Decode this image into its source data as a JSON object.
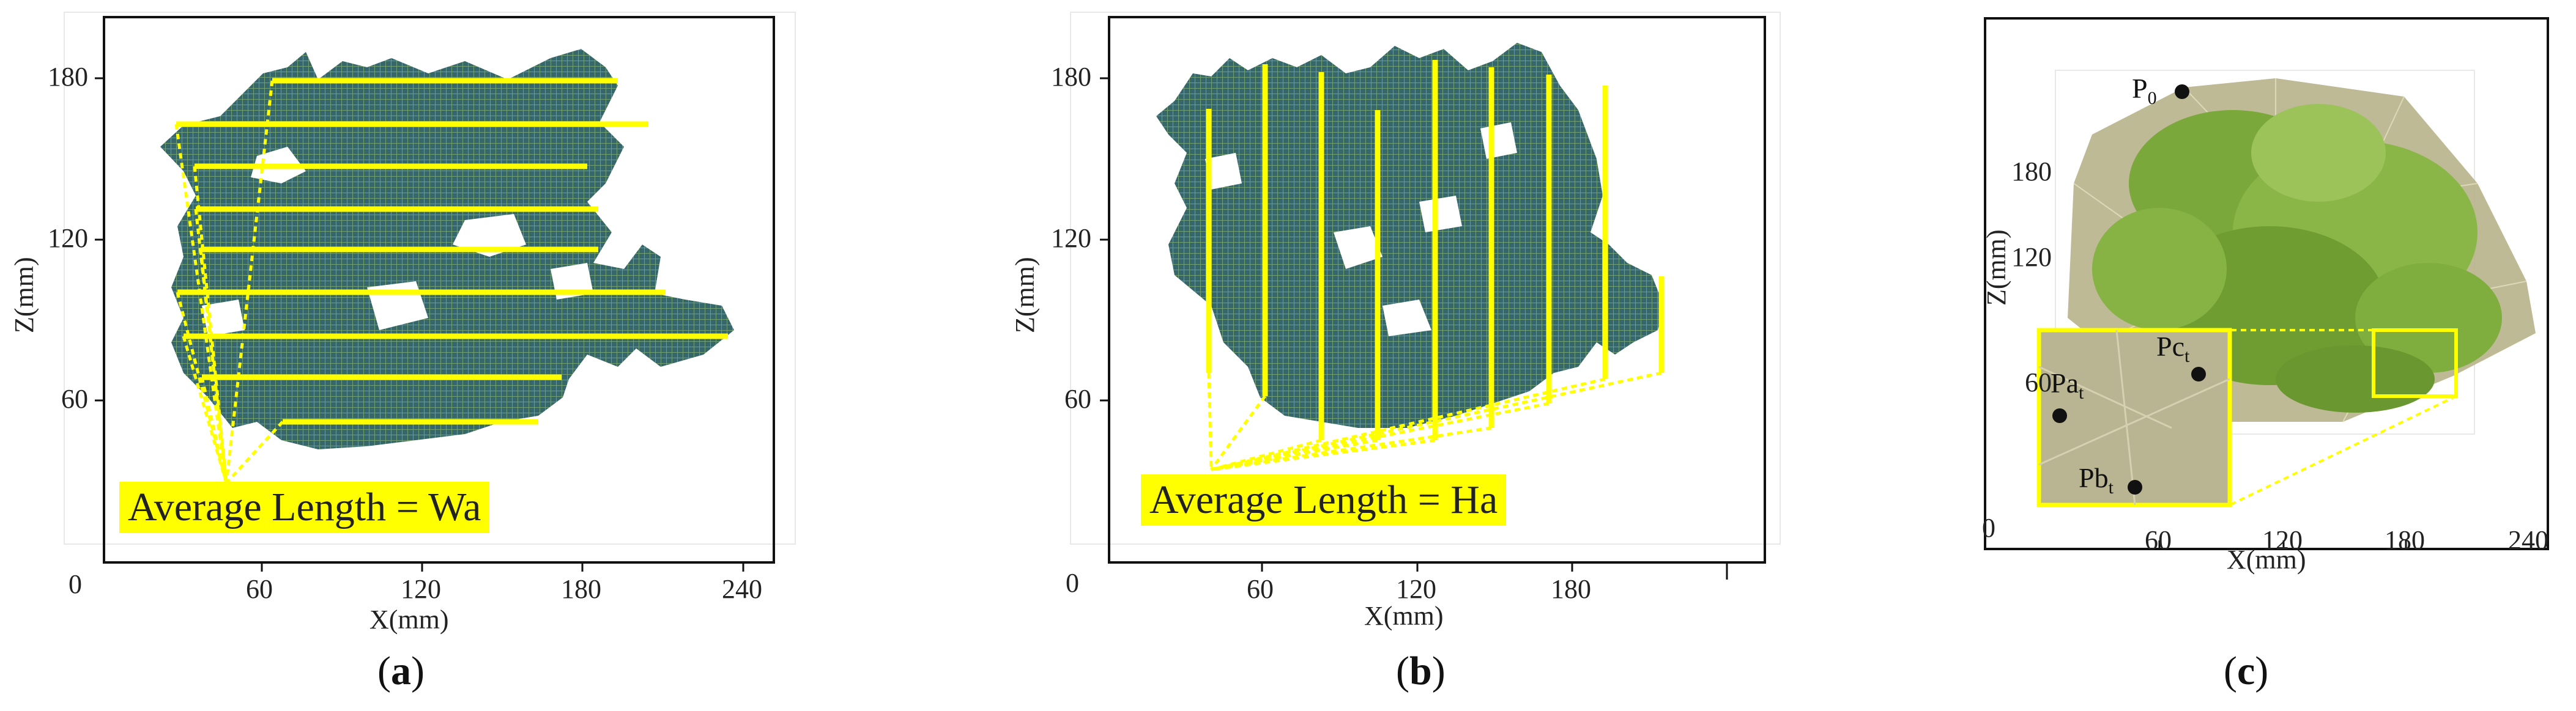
{
  "panels": [
    {
      "id": "a",
      "caption_letter": "a",
      "xlabel": "X(mm)",
      "ylabel": "Z(mm)",
      "x_ticks": [
        "0",
        "60",
        "120",
        "180",
        "240"
      ],
      "y_ticks": [
        "60",
        "120",
        "180"
      ],
      "annotation": "Average Length = Wa"
    },
    {
      "id": "b",
      "caption_letter": "b",
      "xlabel": "X(mm)",
      "ylabel": "Z(mm)",
      "x_ticks": [
        "0",
        "60",
        "120",
        "180"
      ],
      "y_ticks": [
        "60",
        "120",
        "180"
      ],
      "annotation": "Average Length = Ha"
    },
    {
      "id": "c",
      "caption_letter": "c",
      "xlabel": "X(mm)",
      "ylabel": "Z(mm)",
      "x_ticks": [
        "0",
        "60",
        "120",
        "180",
        "240"
      ],
      "y_ticks": [
        "60",
        "120",
        "180"
      ],
      "points": {
        "p0": {
          "base": "P",
          "sub": "0"
        },
        "pa": {
          "base": "Pa",
          "sub": "t"
        },
        "pb": {
          "base": "Pb",
          "sub": "t"
        },
        "pc": {
          "base": "Pc",
          "sub": "t"
        }
      }
    }
  ],
  "colors": {
    "highlight": "#ffff00",
    "leaf_dark": "#1f4f5a",
    "leaf_green": "#7aa83a",
    "hull": "#b7b28a"
  }
}
